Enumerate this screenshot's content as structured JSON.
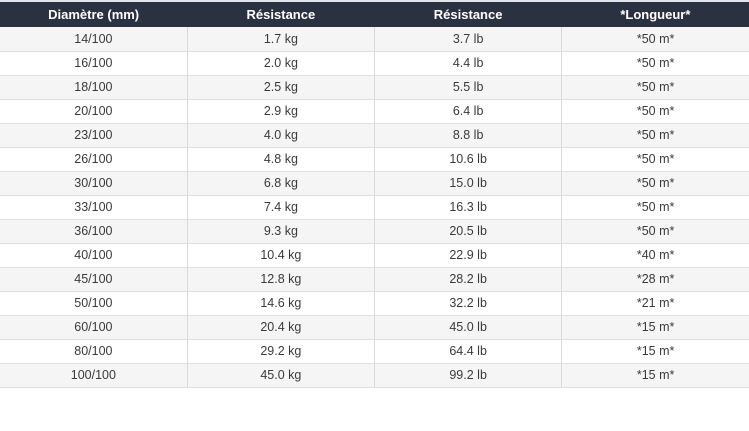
{
  "table": {
    "headers": [
      "Diamètre (mm)",
      "Résistance",
      "Résistance",
      "*Longueur*"
    ],
    "rows": [
      {
        "diameter": "14/100",
        "kg": "1.7 kg",
        "lb": "3.7 lb",
        "length": "*50 m*"
      },
      {
        "diameter": "16/100",
        "kg": "2.0 kg",
        "lb": "4.4 lb",
        "length": "*50 m*"
      },
      {
        "diameter": "18/100",
        "kg": "2.5 kg",
        "lb": "5.5 lb",
        "length": "*50 m*"
      },
      {
        "diameter": "20/100",
        "kg": "2.9 kg",
        "lb": "6.4 lb",
        "length": "*50 m*"
      },
      {
        "diameter": "23/100",
        "kg": "4.0 kg",
        "lb": "8.8 lb",
        "length": "*50 m*"
      },
      {
        "diameter": "26/100",
        "kg": "4.8 kg",
        "lb": "10.6 lb",
        "length": "*50 m*"
      },
      {
        "diameter": "30/100",
        "kg": "6.8 kg",
        "lb": "15.0 lb",
        "length": "*50 m*"
      },
      {
        "diameter": "33/100",
        "kg": "7.4 kg",
        "lb": "16.3 lb",
        "length": "*50 m*"
      },
      {
        "diameter": "36/100",
        "kg": "9.3 kg",
        "lb": "20.5 lb",
        "length": "*50 m*"
      },
      {
        "diameter": "40/100",
        "kg": "10.4 kg",
        "lb": "22.9 lb",
        "length": "*40 m*"
      },
      {
        "diameter": "45/100",
        "kg": "12.8 kg",
        "lb": "28.2 lb",
        "length": "*28 m*"
      },
      {
        "diameter": "50/100",
        "kg": "14.6 kg",
        "lb": "32.2 lb",
        "length": "*21 m*"
      },
      {
        "diameter": "60/100",
        "kg": "20.4 kg",
        "lb": "45.0 lb",
        "length": "*15 m*"
      },
      {
        "diameter": "80/100",
        "kg": "29.2 kg",
        "lb": "64.4 lb",
        "length": "*15 m*"
      },
      {
        "diameter": "100/100",
        "kg": "45.0 kg",
        "lb": "99.2 lb",
        "length": "*15 m*"
      }
    ]
  },
  "colors": {
    "header_bg": "#2a3140",
    "header_text": "#ffffff",
    "row_alt_bg": "#f5f5f5",
    "row_bg": "#ffffff",
    "cell_text": "#3a3a3a",
    "border_vertical": "#d9d9d9",
    "border_horizontal": "#e0e0e0",
    "table_top_border": "#e1e6ec"
  },
  "chart_data": {
    "type": "table",
    "title": "",
    "columns": [
      "Diamètre (mm)",
      "Résistance",
      "Résistance",
      "*Longueur*"
    ],
    "rows": [
      [
        "14/100",
        "1.7 kg",
        "3.7 lb",
        "*50 m*"
      ],
      [
        "16/100",
        "2.0 kg",
        "4.4 lb",
        "*50 m*"
      ],
      [
        "18/100",
        "2.5 kg",
        "5.5 lb",
        "*50 m*"
      ],
      [
        "20/100",
        "2.9 kg",
        "6.4 lb",
        "*50 m*"
      ],
      [
        "23/100",
        "4.0 kg",
        "8.8 lb",
        "*50 m*"
      ],
      [
        "26/100",
        "4.8 kg",
        "10.6 lb",
        "*50 m*"
      ],
      [
        "30/100",
        "6.8 kg",
        "15.0 lb",
        "*50 m*"
      ],
      [
        "33/100",
        "7.4 kg",
        "16.3 lb",
        "*50 m*"
      ],
      [
        "36/100",
        "9.3 kg",
        "20.5 lb",
        "*50 m*"
      ],
      [
        "40/100",
        "10.4 kg",
        "22.9 lb",
        "*40 m*"
      ],
      [
        "45/100",
        "12.8 kg",
        "28.2 lb",
        "*28 m*"
      ],
      [
        "50/100",
        "14.6 kg",
        "32.2 lb",
        "*21 m*"
      ],
      [
        "60/100",
        "20.4 kg",
        "45.0 lb",
        "*15 m*"
      ],
      [
        "80/100",
        "29.2 kg",
        "64.4 lb",
        "*15 m*"
      ],
      [
        "100/100",
        "45.0 kg",
        "99.2 lb",
        "*15 m*"
      ]
    ]
  }
}
